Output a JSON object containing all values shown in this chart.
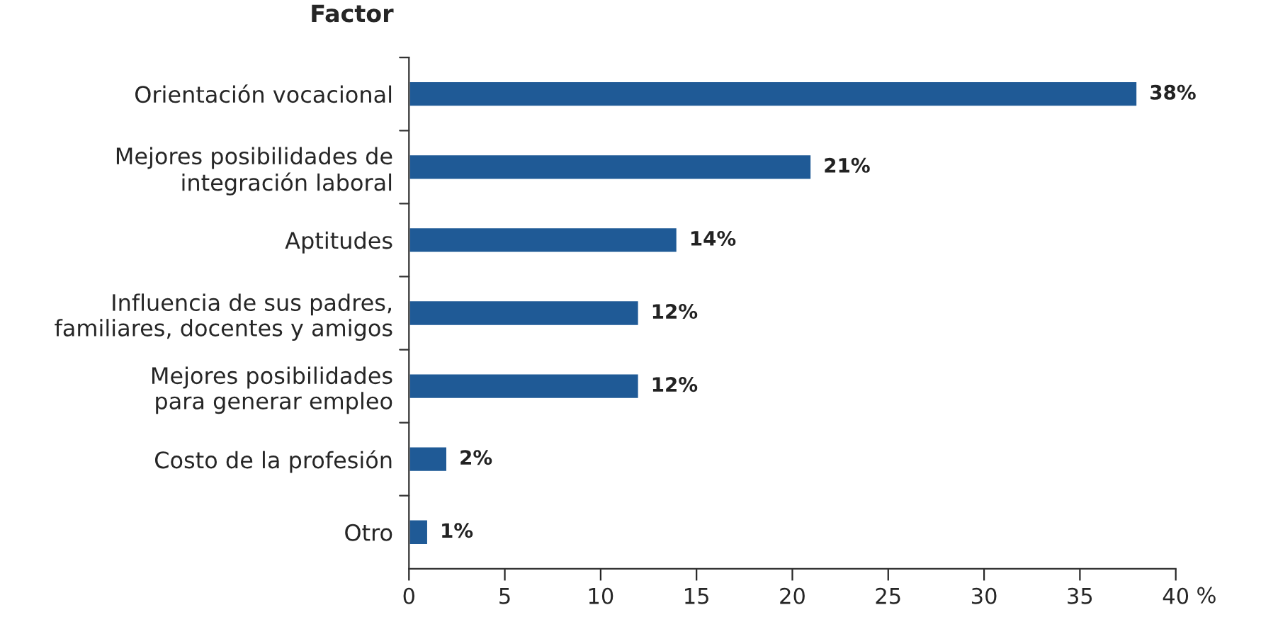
{
  "chart_data": {
    "type": "bar",
    "orientation": "horizontal",
    "ylabel": "Factor",
    "xlabel": "%",
    "categories": [
      "Orientación vocacional",
      "Mejores posibilidades de\nintegración laboral",
      "Aptitudes",
      "Influencia de sus padres,\nfamiliares, docentes y amigos",
      "Mejores posibilidades\npara generar empleo",
      "Costo de la profesión",
      "Otro"
    ],
    "values": [
      38,
      21,
      14,
      12,
      12,
      2,
      1
    ],
    "value_labels": [
      "38%",
      "21%",
      "14%",
      "12%",
      "12%",
      "2%",
      "1%"
    ],
    "color": "#1f5a96",
    "xlim": [
      0,
      40
    ],
    "xticks": [
      0,
      5,
      10,
      15,
      20,
      25,
      30,
      35,
      40
    ],
    "grid": false,
    "legend": false
  }
}
